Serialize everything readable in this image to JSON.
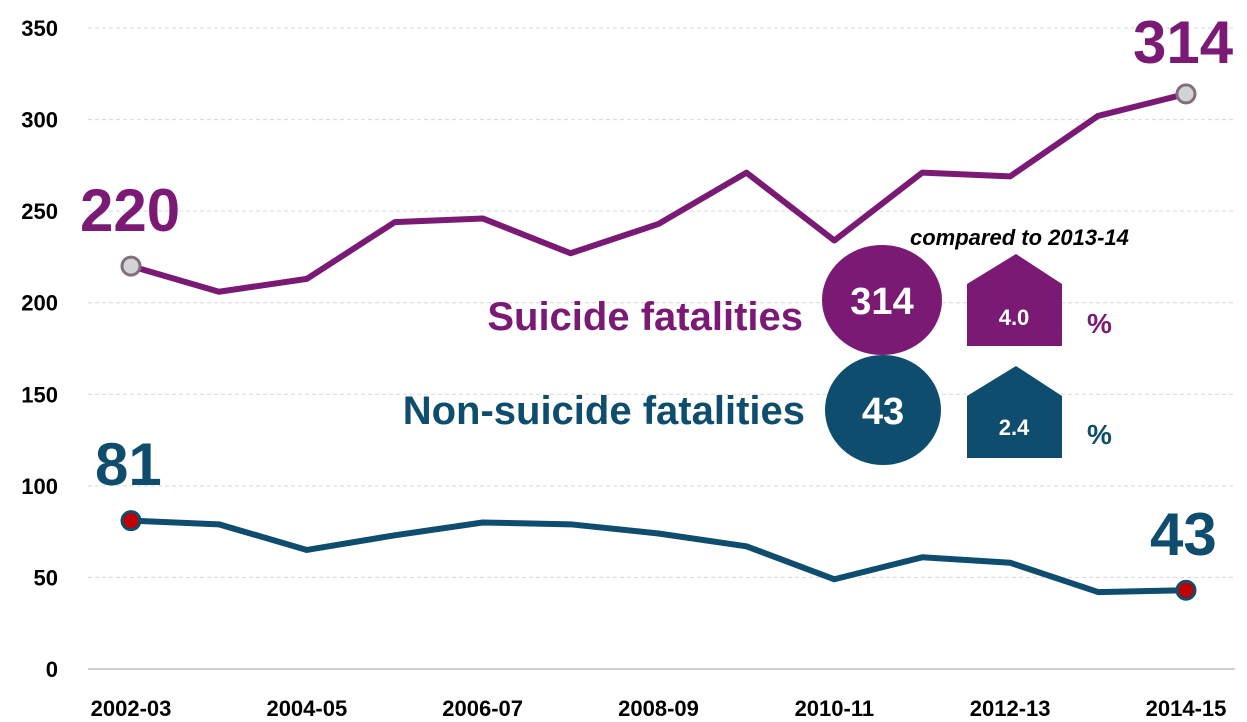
{
  "chart_data": {
    "type": "line",
    "title": "",
    "xlabel": "",
    "ylabel": "",
    "ylim": [
      0,
      350
    ],
    "yticks": [
      0,
      50,
      100,
      150,
      200,
      250,
      300,
      350
    ],
    "x": [
      "2002-03",
      "2003-04",
      "2004-05",
      "2005-06",
      "2006-07",
      "2007-08",
      "2008-09",
      "2009-10",
      "2010-11",
      "2011-12",
      "2012-13",
      "2013-14",
      "2014-15"
    ],
    "xtick_labels": [
      "2002-03",
      "2004-05",
      "2006-07",
      "2008-09",
      "2010-11",
      "2012-13",
      "2014-15"
    ],
    "grid": "horizontal dashed",
    "series": [
      {
        "name": "Suicide fatalities",
        "color": "#7B1A75",
        "values": [
          220,
          206,
          213,
          244,
          246,
          227,
          243,
          271,
          234,
          271,
          269,
          302,
          314
        ],
        "start_label": "220",
        "end_label": "314",
        "marker_color": "#d3d3d3"
      },
      {
        "name": "Non-suicide fatalities",
        "color": "#0E4D6E",
        "values": [
          81,
          79,
          65,
          73,
          80,
          79,
          74,
          67,
          49,
          61,
          58,
          42,
          43
        ],
        "start_label": "81",
        "end_label": "43",
        "marker_color": "#c00000"
      }
    ],
    "legend": {
      "placement": "center-right",
      "caption": "compared to 2013-14",
      "items": [
        {
          "label": "Suicide fatalities",
          "value": "314",
          "change": "4.0",
          "unit": "%",
          "color": "#7B1A75"
        },
        {
          "label": "Non-suicide fatalities",
          "value": "43",
          "change": "2.4",
          "unit": "%",
          "color": "#0E4D6E"
        }
      ]
    }
  }
}
